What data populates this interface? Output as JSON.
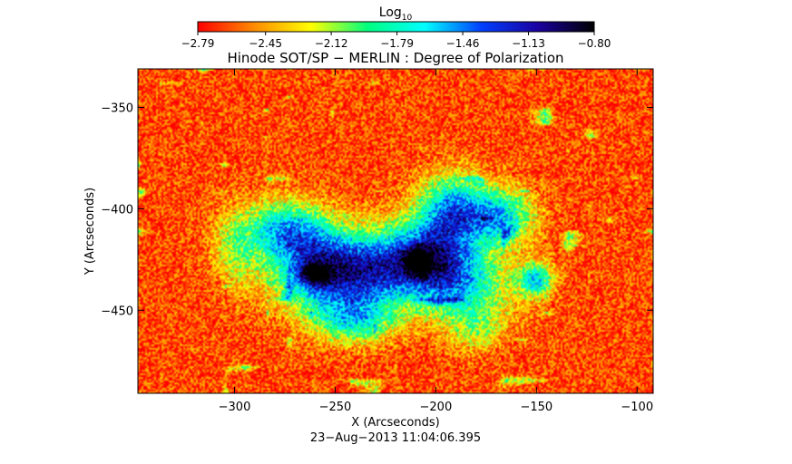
{
  "chart_data": {
    "type": "heatmap",
    "title": "Hinode SOT/SP − MERLIN : Degree of Polarization",
    "xlabel": "X (Arcseconds)",
    "ylabel": "Y (Arcseconds)",
    "date_label": "23−Aug−2013 11:04:06.395",
    "xlim": [
      -348,
      -92
    ],
    "ylim": [
      -491,
      -331
    ],
    "x_ticks": [
      -300,
      -250,
      -200,
      -150,
      -100
    ],
    "x_tick_labels": [
      "−300",
      "−250",
      "−200",
      "−150",
      "−100"
    ],
    "y_ticks": [
      -350,
      -400,
      -450
    ],
    "y_tick_labels": [
      "−350",
      "−400",
      "−450"
    ],
    "colorbar": {
      "label_main": "Log",
      "label_sub": "10",
      "range": [
        -2.79,
        -0.8
      ],
      "ticks": [
        -2.79,
        -2.45,
        -2.12,
        -1.79,
        -1.46,
        -1.13,
        -0.8
      ],
      "tick_labels": [
        "−2.79",
        "−2.45",
        "−2.12",
        "−1.79",
        "−1.46",
        "−1.13",
        "−0.80"
      ],
      "colors": [
        "#ff0000",
        "#ff8c00",
        "#ffff00",
        "#00ff80",
        "#00ffff",
        "#0040ff",
        "#1a00a0",
        "#000000"
      ]
    },
    "field": {
      "background_value": -2.65,
      "blobs": [
        {
          "x": -255,
          "y": -430,
          "sx": 18,
          "sy": 14,
          "amp": 1.45
        },
        {
          "x": -205,
          "y": -425,
          "sx": 17,
          "sy": 13,
          "amp": 1.45
        },
        {
          "x": -275,
          "y": -410,
          "sx": 14,
          "sy": 10,
          "amp": 0.95
        },
        {
          "x": -192,
          "y": -400,
          "sx": 12,
          "sy": 12,
          "amp": 1.05
        },
        {
          "x": -168,
          "y": -404,
          "sx": 12,
          "sy": 10,
          "amp": 0.95
        },
        {
          "x": -240,
          "y": -455,
          "sx": 14,
          "sy": 8,
          "amp": 0.8
        },
        {
          "x": -185,
          "y": -440,
          "sx": 18,
          "sy": 12,
          "amp": 0.7
        },
        {
          "x": -232,
          "y": -432,
          "sx": 14,
          "sy": 12,
          "amp": 0.55
        },
        {
          "x": -150,
          "y": -435,
          "sx": 6,
          "sy": 6,
          "amp": 0.95
        },
        {
          "x": -260,
          "y": -432,
          "sx": 5,
          "sy": 3.5,
          "amp": 0.9
        },
        {
          "x": -209,
          "y": -426,
          "sx": 4,
          "sy": 4,
          "amp": 0.9
        },
        {
          "x": -300,
          "y": -420,
          "sx": 8,
          "sy": 14,
          "amp": 0.45
        },
        {
          "x": -180,
          "y": -460,
          "sx": 10,
          "sy": 8,
          "amp": 0.4
        }
      ]
    }
  }
}
